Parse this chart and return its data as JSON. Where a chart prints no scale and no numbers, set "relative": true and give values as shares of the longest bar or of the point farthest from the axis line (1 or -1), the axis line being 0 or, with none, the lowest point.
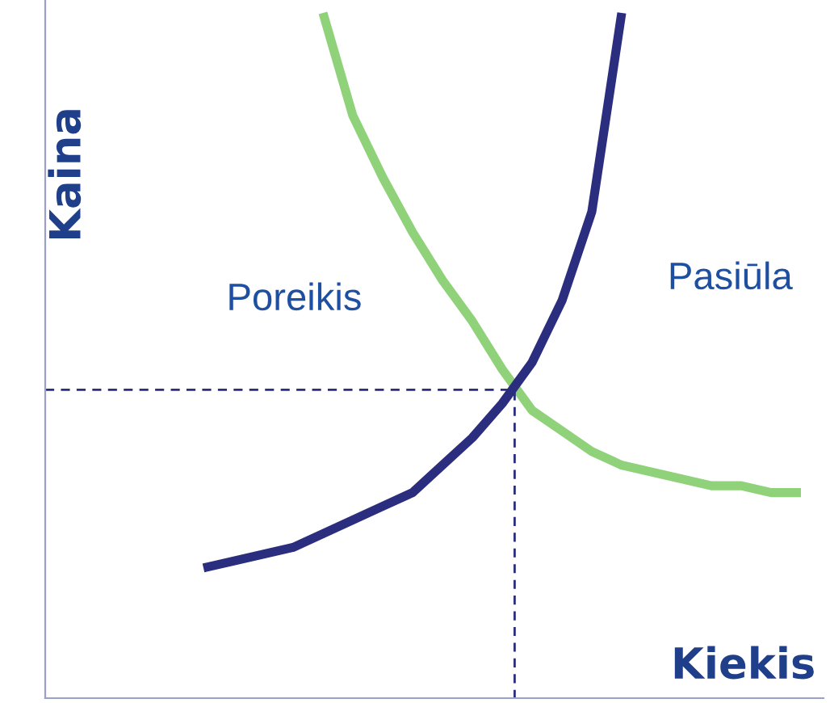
{
  "chart_data": {
    "type": "line",
    "relative": true,
    "xlabel": "Kiekis",
    "ylabel": "Kaina",
    "categories": [
      null,
      null,
      null,
      null,
      null,
      null,
      null,
      null,
      null,
      null,
      null,
      null,
      null,
      null,
      null,
      null,
      null,
      null,
      null,
      null,
      null
    ],
    "series": [
      {
        "name": "Poreikis",
        "color": "#8fd27a",
        "values": [
          null,
          null,
          null,
          null,
          1.0,
          0.85,
          0.76,
          0.68,
          0.61,
          0.55,
          0.48,
          0.42,
          0.39,
          0.36,
          0.34,
          0.33,
          0.32,
          0.31,
          0.31,
          0.3,
          0.3
        ]
      },
      {
        "name": "Pasiūla",
        "color": "#2b2e7e",
        "values": [
          0.19,
          0.2,
          0.21,
          0.22,
          0.24,
          0.26,
          0.28,
          0.3,
          0.34,
          0.38,
          0.43,
          0.49,
          0.58,
          0.71,
          1.0,
          null,
          null,
          null,
          null,
          null,
          null
        ]
      }
    ],
    "ref_lines": [
      {
        "axis": "y",
        "value": 0.45,
        "color": "#2b2e7e",
        "line_style": "dashed"
      }
    ],
    "legend": false
  }
}
